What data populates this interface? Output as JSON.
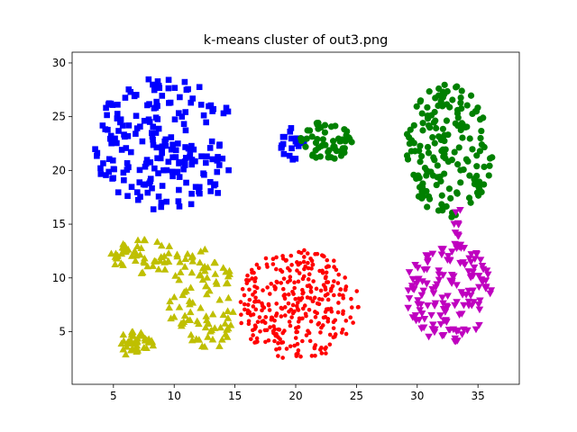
{
  "chart_data": {
    "type": "scatter",
    "title": "k-means cluster of out3.png",
    "xlabel": "",
    "ylabel": "",
    "xlim": [
      1.6,
      38.4
    ],
    "ylim": [
      0.1,
      31.0
    ],
    "xticks": [
      5,
      10,
      15,
      20,
      25,
      30,
      35
    ],
    "yticks": [
      5,
      10,
      15,
      20,
      25,
      30
    ],
    "grid": false,
    "legend": "none",
    "series": [
      {
        "color": "#0000ff",
        "marker": "square",
        "count": 210,
        "shape": "crescent",
        "center": [
          9.5,
          22.4
        ],
        "radius": 6.3,
        "cut_center": [
          16.6,
          22.4
        ],
        "cut_radius": 2.8
      },
      {
        "color": "#0000ff",
        "marker": "square",
        "count": 20,
        "shape": "blob",
        "center": [
          19.7,
          22.6
        ],
        "rx": 1.1,
        "ry": 1.6
      },
      {
        "color": "#008000",
        "marker": "circle",
        "count": 55,
        "shape": "blob",
        "center": [
          22.6,
          22.8
        ],
        "rx": 2.2,
        "ry": 1.8
      },
      {
        "color": "#008000",
        "marker": "circle",
        "count": 170,
        "shape": "blob",
        "center": [
          32.6,
          21.8
        ],
        "rx": 3.6,
        "ry": 6.2
      },
      {
        "color": "#ff0000",
        "marker": "small-circle",
        "count": 330,
        "shape": "blob",
        "center": [
          20.2,
          7.5
        ],
        "rx": 5.0,
        "ry": 5.1
      },
      {
        "color": "#bfbf00",
        "marker": "triangle-up",
        "count": 55,
        "shape": "blob",
        "center": [
          7.5,
          12.0
        ],
        "rx": 2.8,
        "ry": 1.6
      },
      {
        "color": "#bfbf00",
        "marker": "triangle-up",
        "count": 45,
        "shape": "blob",
        "center": [
          6.6,
          3.9
        ],
        "rx": 1.7,
        "ry": 1.1
      },
      {
        "color": "#bfbf00",
        "marker": "triangle-up",
        "count": 95,
        "shape": "blob",
        "center": [
          12.3,
          7.8
        ],
        "rx": 2.8,
        "ry": 5.0
      },
      {
        "color": "#bf00bf",
        "marker": "triangle-down",
        "count": 150,
        "shape": "blob",
        "center": [
          32.6,
          8.7
        ],
        "rx": 3.6,
        "ry": 4.7
      },
      {
        "color": "#bf00bf",
        "marker": "triangle-down",
        "count": 12,
        "shape": "bridge",
        "from": [
          33.1,
          12.4
        ],
        "to": [
          33.4,
          16.6
        ]
      }
    ]
  }
}
